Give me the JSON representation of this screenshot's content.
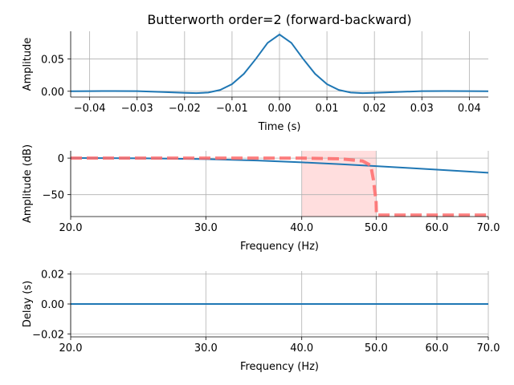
{
  "title": "Butterworth order=2 (forward-backward)",
  "colors": {
    "line": "#1f77b4",
    "ideal": "#ff6b6b",
    "band": "#ffdede",
    "grid": "#b0b0b0"
  },
  "chart_data": [
    {
      "type": "line",
      "name": "impulse",
      "xlabel": "Time (s)",
      "ylabel": "Amplitude",
      "xlim": [
        -0.044,
        0.044
      ],
      "ylim": [
        -0.009,
        0.093
      ],
      "xticks": [
        -0.04,
        -0.03,
        -0.02,
        -0.01,
        0.0,
        0.01,
        0.02,
        0.03,
        0.04
      ],
      "xtick_labels": [
        "−0.04",
        "−0.03",
        "−0.02",
        "−0.01",
        "0.00",
        "0.01",
        "0.02",
        "0.03",
        "0.04"
      ],
      "yticks": [
        0.0,
        0.05
      ],
      "ytick_labels": [
        "0.00",
        "0.05"
      ],
      "grid": "x-and-y",
      "series": [
        {
          "x": [
            -0.044,
            -0.04,
            -0.035,
            -0.03,
            -0.025,
            -0.02,
            -0.0175,
            -0.015,
            -0.0125,
            -0.01,
            -0.0075,
            -0.005,
            -0.0025,
            0.0,
            0.0025,
            0.005,
            0.0075,
            0.01,
            0.0125,
            0.015,
            0.0175,
            0.02,
            0.025,
            0.03,
            0.035,
            0.04,
            0.044
          ],
          "y": [
            0.0,
            0.0002,
            0.0003,
            0.0001,
            -0.001,
            -0.0025,
            -0.003,
            -0.002,
            0.002,
            0.011,
            0.027,
            0.05,
            0.075,
            0.088,
            0.075,
            0.05,
            0.027,
            0.011,
            0.002,
            -0.002,
            -0.003,
            -0.0025,
            -0.001,
            0.0001,
            0.0003,
            0.0002,
            0.0
          ]
        }
      ]
    },
    {
      "type": "line",
      "name": "magnitude",
      "xlabel": "Frequency (Hz)",
      "ylabel": "Amplitude (dB)",
      "xscale": "log",
      "xlim": [
        20.0,
        70.0
      ],
      "ylim": [
        -80,
        10
      ],
      "xticks": [
        20.0,
        30.0,
        40.0,
        50.0,
        60.0,
        70.0
      ],
      "xtick_labels": [
        "20.0",
        "30.0",
        "40.0",
        "50.0",
        "60.0",
        "70.0"
      ],
      "yticks": [
        0,
        -50
      ],
      "ytick_labels": [
        "0",
        "−50"
      ],
      "grid": "x-and-y",
      "shaded_band": [
        40.0,
        50.0
      ],
      "series": [
        {
          "style": "solid",
          "x": [
            20,
            25,
            30,
            35,
            40,
            45,
            50,
            55,
            60,
            65,
            70
          ],
          "y": [
            0.1,
            -0.3,
            -1.4,
            -3.3,
            -5.8,
            -8.4,
            -11.0,
            -13.5,
            -15.8,
            -18.0,
            -20.0
          ]
        },
        {
          "style": "dashed",
          "x": [
            20,
            40,
            45,
            48,
            49.2,
            49.6,
            50.0,
            50.05,
            70
          ],
          "y": [
            0.0,
            0.0,
            -1.0,
            -4.0,
            -10.0,
            -30.0,
            -60.0,
            -78.0,
            -78.0
          ]
        }
      ]
    },
    {
      "type": "line",
      "name": "delay",
      "xlabel": "Frequency (Hz)",
      "ylabel": "Delay (s)",
      "xscale": "log",
      "xlim": [
        20.0,
        70.0
      ],
      "ylim": [
        -0.022,
        0.022
      ],
      "xticks": [
        20.0,
        30.0,
        40.0,
        50.0,
        60.0,
        70.0
      ],
      "xtick_labels": [
        "20.0",
        "30.0",
        "40.0",
        "50.0",
        "60.0",
        "70.0"
      ],
      "yticks": [
        0.02,
        0.0,
        -0.02
      ],
      "ytick_labels": [
        "0.02",
        "0.00",
        "−0.02"
      ],
      "grid": "x-and-y",
      "series": [
        {
          "x": [
            20,
            70
          ],
          "y": [
            0.0,
            0.0
          ]
        }
      ]
    }
  ]
}
